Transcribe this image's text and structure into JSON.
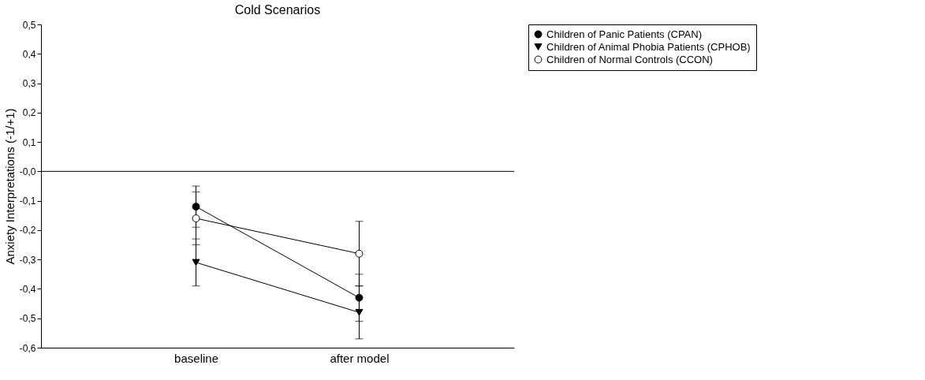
{
  "chart_data": {
    "type": "line",
    "title": "Cold Scenarios",
    "ylabel": "Anxiety Interpretations (-1/+1)",
    "categories": [
      "baseline",
      "after model"
    ],
    "series": [
      {
        "name": "Children of Panic Patients (CPAN)",
        "color": "#000000",
        "marker": "circle",
        "values": [
          -0.12,
          -0.43
        ],
        "errors": [
          [
            -0.19,
            -0.05
          ],
          [
            -0.51,
            -0.35
          ]
        ]
      },
      {
        "name": "Children of Animal Phobia Patients (CPHOB)",
        "color": "#000000",
        "marker": "triangle",
        "values": [
          -0.31,
          -0.48
        ],
        "errors": [
          [
            -0.39,
            -0.23
          ],
          [
            -0.57,
            -0.39
          ]
        ]
      },
      {
        "name": "Children of Normal Controls (CCON)",
        "color": "#000000",
        "colors": [
          "#ffffff",
          "#ffffff"
        ],
        "marker": "circle",
        "values": [
          -0.16,
          -0.28
        ],
        "errors": [
          [
            -0.25,
            -0.07
          ],
          [
            -0.39,
            -0.17
          ]
        ]
      }
    ],
    "ylim": [
      -0.6,
      0.5
    ],
    "yticks": [
      {
        "value": 0.5,
        "label": "0,5"
      },
      {
        "value": 0.4,
        "label": "0,4"
      },
      {
        "value": 0.3,
        "label": "0,3"
      },
      {
        "value": 0.2,
        "label": "0,2"
      },
      {
        "value": 0.1,
        "label": "0,1"
      },
      {
        "value": 0,
        "label": "-0,0"
      },
      {
        "value": -0.1,
        "label": "-0,1"
      },
      {
        "value": -0.2,
        "label": "-0,2"
      },
      {
        "value": -0.3,
        "label": "-0,3"
      },
      {
        "value": -0.4,
        "label": "-0,4"
      },
      {
        "value": -0.5,
        "label": "-0,5"
      },
      {
        "value": -0.6,
        "label": "-0,6"
      }
    ],
    "ref_lines": [
      {
        "axis": "y",
        "value": 0,
        "color": "#000000"
      }
    ],
    "grid": false,
    "legend": "right",
    "line_style": "solid"
  }
}
